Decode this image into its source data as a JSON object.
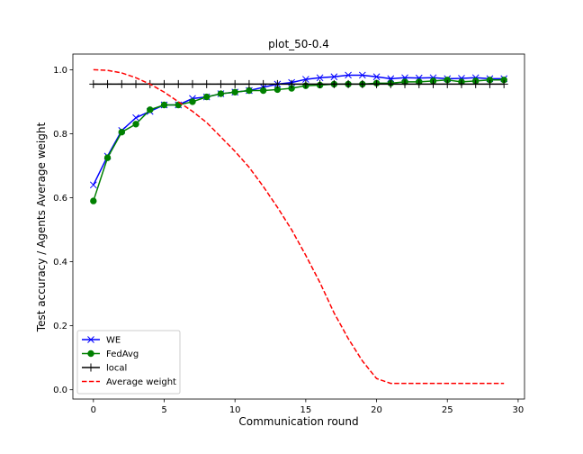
{
  "chart_data": {
    "type": "line",
    "title": "plot_50-0.4",
    "x_label": "Communication round",
    "y_label": "Test accuracy / Agents Average weight",
    "x": [
      0,
      1,
      2,
      3,
      4,
      5,
      6,
      7,
      8,
      9,
      10,
      11,
      12,
      13,
      14,
      15,
      16,
      17,
      18,
      19,
      20,
      21,
      22,
      23,
      24,
      25,
      26,
      27,
      28,
      29
    ],
    "series": [
      {
        "name": "WE",
        "color": "#0000ff",
        "marker": "x",
        "dash": false,
        "values": [
          0.64,
          0.73,
          0.81,
          0.85,
          0.87,
          0.89,
          0.89,
          0.91,
          0.915,
          0.925,
          0.93,
          0.935,
          0.945,
          0.955,
          0.96,
          0.97,
          0.975,
          0.978,
          0.983,
          0.983,
          0.978,
          0.972,
          0.975,
          0.974,
          0.975,
          0.972,
          0.973,
          0.975,
          0.972,
          0.972
        ]
      },
      {
        "name": "FedAvg",
        "color": "#008000",
        "marker": "o",
        "dash": false,
        "values": [
          0.59,
          0.725,
          0.805,
          0.83,
          0.875,
          0.89,
          0.89,
          0.9,
          0.915,
          0.925,
          0.93,
          0.935,
          0.935,
          0.938,
          0.942,
          0.95,
          0.952,
          0.955,
          0.955,
          0.955,
          0.958,
          0.958,
          0.962,
          0.962,
          0.965,
          0.968,
          0.962,
          0.965,
          0.968,
          0.968
        ]
      },
      {
        "name": "local",
        "color": "#000000",
        "marker": "+",
        "dash": false,
        "values": [
          0.955,
          0.955,
          0.955,
          0.955,
          0.955,
          0.955,
          0.955,
          0.955,
          0.955,
          0.955,
          0.955,
          0.955,
          0.955,
          0.955,
          0.955,
          0.955,
          0.955,
          0.955,
          0.955,
          0.955,
          0.955,
          0.955,
          0.955,
          0.955,
          0.955,
          0.955,
          0.955,
          0.955,
          0.955,
          0.955
        ]
      },
      {
        "name": "Average weight",
        "color": "#ff0000",
        "marker": null,
        "dash": true,
        "values": [
          1.0,
          0.998,
          0.99,
          0.975,
          0.955,
          0.93,
          0.9,
          0.87,
          0.835,
          0.79,
          0.745,
          0.695,
          0.635,
          0.57,
          0.5,
          0.42,
          0.335,
          0.24,
          0.16,
          0.09,
          0.035,
          0.02,
          0.02,
          0.02,
          0.02,
          0.02,
          0.02,
          0.02,
          0.02,
          0.02
        ]
      }
    ],
    "xlim": [
      -1.45,
      30.45
    ],
    "xticks": [
      0,
      5,
      10,
      15,
      20,
      25,
      30
    ],
    "ylim": [
      -0.029,
      1.049
    ],
    "yticks": [
      {
        "value": 0,
        "label": "0.0"
      },
      {
        "value": 0.2,
        "label": "0.2"
      },
      {
        "value": 0.4,
        "label": "0.4"
      },
      {
        "value": 0.6,
        "label": "0.6"
      },
      {
        "value": 0.8,
        "label": "0.8"
      },
      {
        "value": 1.0,
        "label": "1.0"
      }
    ],
    "legend": "lower left",
    "grid": false
  }
}
